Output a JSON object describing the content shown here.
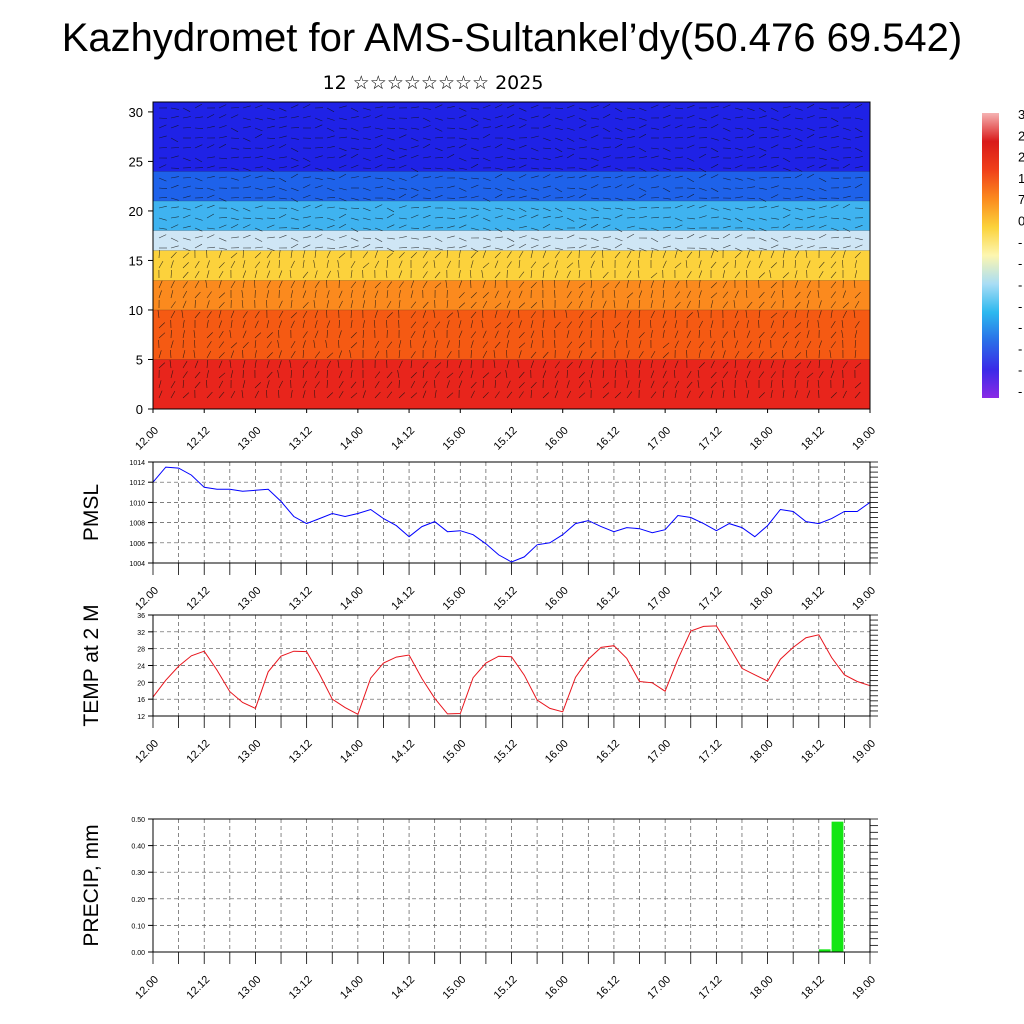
{
  "header": {
    "title": "Kazhydromet for AMS-Sultankel’dy(50.476 69.542)",
    "subtitle": "12 ☆☆☆☆☆☆☆☆ 2025"
  },
  "colorbar": {
    "labels": [
      "3",
      "2",
      "2",
      "1",
      "7",
      "0",
      "-",
      "-",
      "-",
      "-",
      "-",
      "-",
      "-",
      "-"
    ]
  },
  "chart_data": [
    {
      "type": "heatmap",
      "title": "",
      "x_tick_labels": [
        "12.00",
        "12.12",
        "13.00",
        "13.12",
        "14.00",
        "14.12",
        "15.00",
        "15.12",
        "16.00",
        "16.12",
        "17.00",
        "17.12",
        "18.00",
        "18.12",
        "19.00"
      ],
      "ylim": [
        0,
        31
      ],
      "y_ticks": [
        0,
        5,
        10,
        15,
        20,
        25,
        30
      ],
      "y_tick_labels": [
        "0",
        "5",
        "10",
        "15",
        "20",
        "25",
        "30"
      ],
      "bands": [
        {
          "from": 0,
          "to": 5,
          "color": "#e8251c"
        },
        {
          "from": 5,
          "to": 10,
          "color": "#f55a13"
        },
        {
          "from": 10,
          "to": 13,
          "color": "#fb8a1e"
        },
        {
          "from": 13,
          "to": 16,
          "color": "#fcd23c"
        },
        {
          "from": 16,
          "to": 18,
          "color": "#cfe6f5"
        },
        {
          "from": 18,
          "to": 21,
          "color": "#3fb3f0"
        },
        {
          "from": 21,
          "to": 24,
          "color": "#1e62ea"
        },
        {
          "from": 24,
          "to": 31,
          "color": "#1f22e6"
        }
      ],
      "overlay": "wind barbs"
    },
    {
      "type": "line",
      "ylabel": "PMSL",
      "ylim": [
        1004,
        1014
      ],
      "y_ticks": [
        1004,
        1006,
        1008,
        1010,
        1012,
        1014
      ],
      "y_tick_labels": [
        "1004",
        "1006",
        "1008",
        "1010",
        "1012",
        "1014"
      ],
      "x_tick_labels": [
        "12.00",
        "12.12",
        "13.00",
        "13.12",
        "14.00",
        "14.12",
        "15.00",
        "15.12",
        "16.00",
        "16.12",
        "17.00",
        "17.12",
        "18.00",
        "18.12",
        "19.00"
      ],
      "color": "#0000ff",
      "x_hours": [
        0,
        3,
        6,
        9,
        12,
        15,
        18,
        21,
        24,
        27,
        30,
        33,
        36,
        39,
        42,
        45,
        48,
        51,
        54,
        57,
        60,
        63,
        66,
        69,
        72,
        75,
        78,
        81,
        84,
        87,
        90,
        93,
        96,
        99,
        102,
        105,
        108,
        111,
        114,
        117,
        120,
        123,
        126,
        129,
        132,
        135,
        138,
        141,
        144,
        147,
        150,
        153,
        156,
        159,
        162,
        165,
        168
      ],
      "y": [
        1012,
        1013.5,
        1013.4,
        1012.7,
        1011.5,
        1011.3,
        1011.3,
        1011.1,
        1011.2,
        1011.3,
        1010.1,
        1008.6,
        1007.9,
        1008.4,
        1008.9,
        1008.6,
        1008.9,
        1009.3,
        1008.4,
        1007.7,
        1006.6,
        1007.6,
        1008.1,
        1007.1,
        1007.2,
        1006.8,
        1005.9,
        1004.8,
        1004.1,
        1004.6,
        1005.8,
        1006.0,
        1006.8,
        1007.9,
        1008.2,
        1007.6,
        1007.1,
        1007.5,
        1007.4,
        1007.0,
        1007.3,
        1008.7,
        1008.5,
        1007.9,
        1007.2,
        1007.9,
        1007.5,
        1006.6,
        1007.7,
        1009.3,
        1009.1,
        1008.1,
        1007.9,
        1008.4,
        1009.1,
        1009.1,
        1010.0
      ]
    },
    {
      "type": "line",
      "ylabel": "TEMP at 2 M",
      "ylim": [
        12,
        36
      ],
      "y_ticks": [
        12,
        16,
        20,
        24,
        28,
        32,
        36
      ],
      "y_tick_labels": [
        "12",
        "16",
        "20",
        "24",
        "28",
        "32",
        "36"
      ],
      "x_tick_labels": [
        "12.00",
        "12.12",
        "13.00",
        "13.12",
        "14.00",
        "14.12",
        "15.00",
        "15.12",
        "16.00",
        "16.12",
        "17.00",
        "17.12",
        "18.00",
        "18.12",
        "19.00"
      ],
      "color": "#e8141c",
      "x_hours": [
        0,
        3,
        6,
        9,
        12,
        15,
        18,
        21,
        24,
        27,
        30,
        33,
        36,
        39,
        42,
        45,
        48,
        51,
        54,
        57,
        60,
        63,
        66,
        69,
        72,
        75,
        78,
        81,
        84,
        87,
        90,
        93,
        96,
        99,
        102,
        105,
        108,
        111,
        114,
        117,
        120,
        123,
        126,
        129,
        132,
        135,
        138,
        141,
        144,
        147,
        150,
        153,
        156,
        159,
        162,
        165,
        168
      ],
      "y": [
        16.5,
        20.5,
        23.8,
        26.3,
        27.4,
        22.9,
        17.8,
        15.2,
        13.8,
        22.5,
        26.2,
        27.4,
        27.3,
        22.0,
        16.0,
        14.0,
        12.4,
        21.0,
        24.6,
        26.0,
        26.5,
        20.9,
        16.2,
        12.5,
        12.6,
        21.1,
        24.6,
        26.2,
        26.1,
        21.7,
        15.8,
        13.8,
        13.0,
        21.2,
        25.5,
        28.3,
        28.7,
        25.7,
        20.2,
        19.9,
        17.9,
        25.5,
        32.2,
        33.3,
        33.4,
        28.5,
        23.3,
        21.8,
        20.3,
        25.5,
        28.3,
        30.6,
        31.3,
        25.9,
        21.8,
        20.2,
        19.2
      ]
    },
    {
      "type": "bar",
      "ylabel": "PRECIP, mm",
      "ylim": [
        0,
        0.5
      ],
      "y_ticks": [
        0,
        0.1,
        0.2,
        0.3,
        0.4,
        0.5
      ],
      "y_tick_labels": [
        "0.00",
        "0.10",
        "0.20",
        "0.30",
        "0.40",
        "0.50"
      ],
      "x_tick_labels": [
        "12.00",
        "12.12",
        "13.00",
        "13.12",
        "14.00",
        "14.12",
        "15.00",
        "15.12",
        "16.00",
        "16.12",
        "17.00",
        "17.12",
        "18.00",
        "18.12",
        "19.00"
      ],
      "color": "#14e614",
      "x_hours": [
        156,
        159
      ],
      "values": [
        0.01,
        0.49
      ]
    }
  ]
}
